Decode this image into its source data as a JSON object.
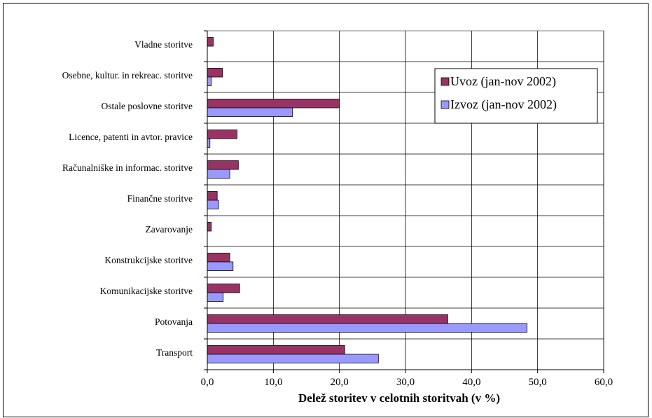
{
  "chart_data": {
    "type": "bar",
    "orientation": "horizontal",
    "categories": [
      "Vladne storitve",
      "Osebne, kultur. in rekreac. storitve",
      "Ostale poslovne storitve",
      "Licence, patenti in avtor. pravice",
      "Računalniške in informac. storitve",
      "Finančne storitve",
      "Zavarovanje",
      "Konstrukcijske storitve",
      "Komunikacijske storitve",
      "Potovanja",
      "Transport"
    ],
    "series": [
      {
        "name": "Uvoz (jan-nov 2002)",
        "color": "#993366",
        "values": [
          0.9,
          2.3,
          20.0,
          4.5,
          4.7,
          1.5,
          0.6,
          3.4,
          4.9,
          36.4,
          20.8
        ]
      },
      {
        "name": "Izvoz (jan-nov 2002)",
        "color": "#9999FF",
        "values": [
          0.0,
          0.6,
          12.9,
          0.4,
          3.4,
          1.7,
          0.0,
          3.9,
          2.4,
          48.4,
          25.9
        ]
      }
    ],
    "xlabel": "Delež storitev v celotnih storitvah (v %)",
    "xlim": [
      0,
      60
    ],
    "xticks": [
      "0,0",
      "10,0",
      "20,0",
      "30,0",
      "40,0",
      "50,0",
      "60,0"
    ],
    "grid": true,
    "legend_position": "top-right"
  }
}
